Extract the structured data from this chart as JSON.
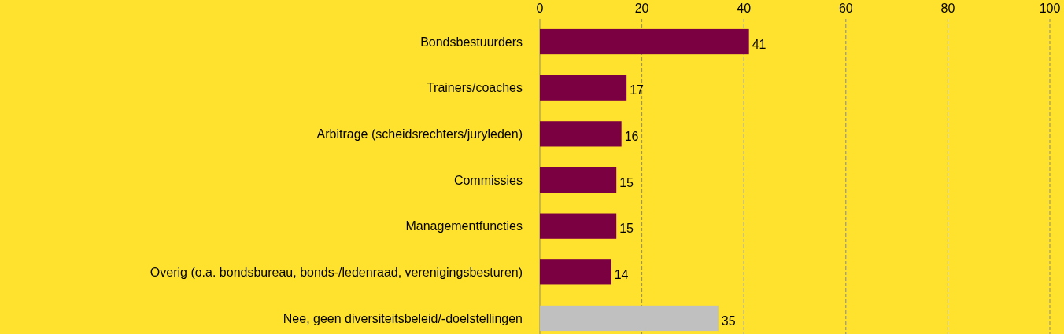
{
  "chart_data": {
    "type": "bar",
    "orientation": "horizontal",
    "categories": [
      "Bondsbestuurders",
      "Trainers/coaches",
      "Arbitrage (scheidsrechters/juryleden)",
      "Commissies",
      "Managementfuncties",
      "Overig (o.a. bondsbureau, bonds-/ledenraad, verenigingsbesturen)",
      "Nee, geen diversiteitsbeleid/-doelstellingen"
    ],
    "values": [
      41,
      17,
      16,
      15,
      15,
      14,
      35
    ],
    "colors": [
      "#7b0041",
      "#7b0041",
      "#7b0041",
      "#7b0041",
      "#7b0041",
      "#7b0041",
      "#c0c0c0"
    ],
    "xlim": [
      0,
      100
    ],
    "xticks": [
      0,
      20,
      40,
      60,
      80,
      100
    ],
    "grid": "x",
    "data_labels": true
  }
}
